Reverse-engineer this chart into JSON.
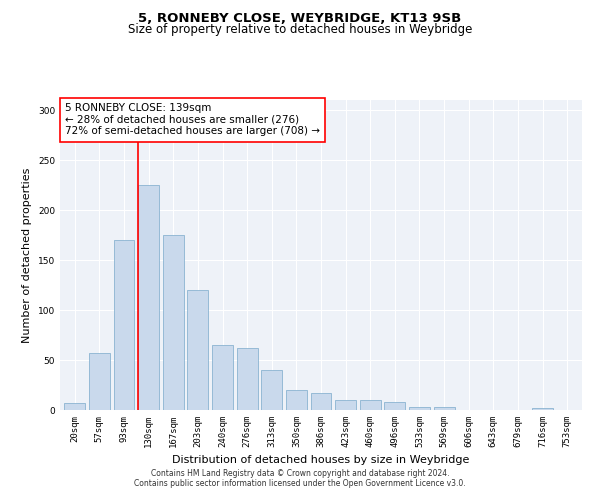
{
  "title_line1": "5, RONNEBY CLOSE, WEYBRIDGE, KT13 9SB",
  "title_line2": "Size of property relative to detached houses in Weybridge",
  "xlabel": "Distribution of detached houses by size in Weybridge",
  "ylabel": "Number of detached properties",
  "bar_labels": [
    "20sqm",
    "57sqm",
    "93sqm",
    "130sqm",
    "167sqm",
    "203sqm",
    "240sqm",
    "276sqm",
    "313sqm",
    "350sqm",
    "386sqm",
    "423sqm",
    "460sqm",
    "496sqm",
    "533sqm",
    "569sqm",
    "606sqm",
    "643sqm",
    "679sqm",
    "716sqm",
    "753sqm"
  ],
  "bar_values": [
    7,
    57,
    170,
    225,
    175,
    120,
    65,
    62,
    40,
    20,
    17,
    10,
    10,
    8,
    3,
    3,
    0,
    0,
    0,
    2,
    0
  ],
  "bar_color": "#c9d9ec",
  "bar_edgecolor": "#7aaacb",
  "vline_color": "red",
  "vline_index": 3,
  "annotation_text": "5 RONNEBY CLOSE: 139sqm\n← 28% of detached houses are smaller (276)\n72% of semi-detached houses are larger (708) →",
  "annotation_box_facecolor": "white",
  "annotation_box_edgecolor": "red",
  "ylim": [
    0,
    310
  ],
  "yticks": [
    0,
    50,
    100,
    150,
    200,
    250,
    300
  ],
  "background_color": "#eef2f8",
  "grid_color": "white",
  "footer_line1": "Contains HM Land Registry data © Crown copyright and database right 2024.",
  "footer_line2": "Contains public sector information licensed under the Open Government Licence v3.0.",
  "title_fontsize": 9.5,
  "subtitle_fontsize": 8.5,
  "xlabel_fontsize": 8,
  "ylabel_fontsize": 8,
  "tick_fontsize": 6.5,
  "annotation_fontsize": 7.5,
  "footer_fontsize": 5.5
}
